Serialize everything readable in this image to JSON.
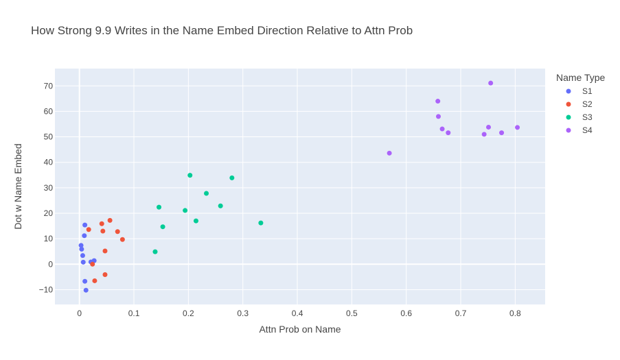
{
  "chart_data": {
    "type": "scatter",
    "title": "How Strong 9.9 Writes in the Name Embed Direction Relative to Attn Prob",
    "xlabel": "Attn Prob on Name",
    "ylabel": "Dot w Name Embed",
    "xlim": [
      -0.045,
      0.855
    ],
    "ylim": [
      -15.8,
      76.8
    ],
    "xticks": [
      0,
      0.1,
      0.2,
      0.3,
      0.4,
      0.5,
      0.6,
      0.7,
      0.8
    ],
    "xtick_labels": [
      "0",
      "0.1",
      "0.2",
      "0.3",
      "0.4",
      "0.5",
      "0.6",
      "0.7",
      "0.8"
    ],
    "yticks": [
      -10,
      0,
      10,
      20,
      30,
      40,
      50,
      60,
      70
    ],
    "ytick_labels": [
      "−10",
      "0",
      "10",
      "20",
      "30",
      "40",
      "50",
      "60",
      "70"
    ],
    "grid": true,
    "legend_title": "Name Type",
    "legend_position": "right",
    "series": [
      {
        "name": "S1",
        "color": "#636efa",
        "points": [
          [
            0.01,
            15.4
          ],
          [
            0.009,
            11.2
          ],
          [
            0.003,
            7.4
          ],
          [
            0.004,
            5.9
          ],
          [
            0.006,
            3.4
          ],
          [
            0.007,
            0.8
          ],
          [
            0.021,
            0.9
          ],
          [
            0.027,
            1.4
          ],
          [
            0.01,
            -6.7
          ],
          [
            0.012,
            -10.2
          ]
        ]
      },
      {
        "name": "S2",
        "color": "#ef553b",
        "points": [
          [
            0.017,
            13.6
          ],
          [
            0.041,
            15.9
          ],
          [
            0.056,
            17.2
          ],
          [
            0.043,
            13.0
          ],
          [
            0.07,
            12.8
          ],
          [
            0.079,
            9.7
          ],
          [
            0.047,
            5.2
          ],
          [
            0.024,
            0.0
          ],
          [
            0.028,
            -6.5
          ],
          [
            0.047,
            -4.1
          ]
        ]
      },
      {
        "name": "S3",
        "color": "#00cc96",
        "points": [
          [
            0.203,
            34.9
          ],
          [
            0.28,
            33.9
          ],
          [
            0.233,
            27.8
          ],
          [
            0.146,
            22.4
          ],
          [
            0.259,
            22.9
          ],
          [
            0.194,
            21.1
          ],
          [
            0.214,
            17.0
          ],
          [
            0.153,
            14.7
          ],
          [
            0.333,
            16.2
          ],
          [
            0.139,
            4.9
          ]
        ]
      },
      {
        "name": "S4",
        "color": "#ab63fa",
        "points": [
          [
            0.755,
            71.1
          ],
          [
            0.658,
            64.0
          ],
          [
            0.659,
            58.0
          ],
          [
            0.666,
            53.1
          ],
          [
            0.677,
            51.6
          ],
          [
            0.751,
            53.8
          ],
          [
            0.804,
            53.7
          ],
          [
            0.775,
            51.6
          ],
          [
            0.743,
            51.0
          ],
          [
            0.569,
            43.6
          ]
        ]
      }
    ]
  }
}
